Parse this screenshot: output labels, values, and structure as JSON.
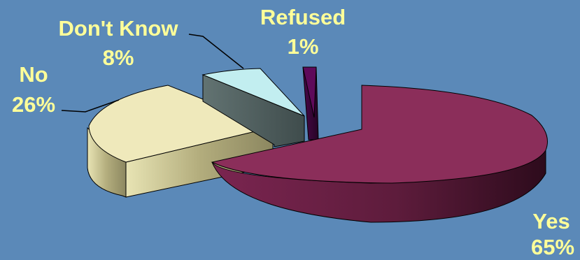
{
  "chart_data": {
    "type": "pie",
    "title": "",
    "slices": [
      {
        "label": "Yes",
        "value": 65,
        "display": "65%",
        "color": "#8b2e5a"
      },
      {
        "label": "No",
        "value": 26,
        "display": "26%",
        "color": "#efe9bb"
      },
      {
        "label": "Don't Know",
        "value": 8,
        "display": "8%",
        "color": "#c2eef0"
      },
      {
        "label": "Refused",
        "value": 1,
        "display": "1%",
        "color": "#5e0a5a"
      }
    ],
    "style": "3d-exploded",
    "label_color": "#ffff99",
    "background_color": "#5b89b8"
  }
}
